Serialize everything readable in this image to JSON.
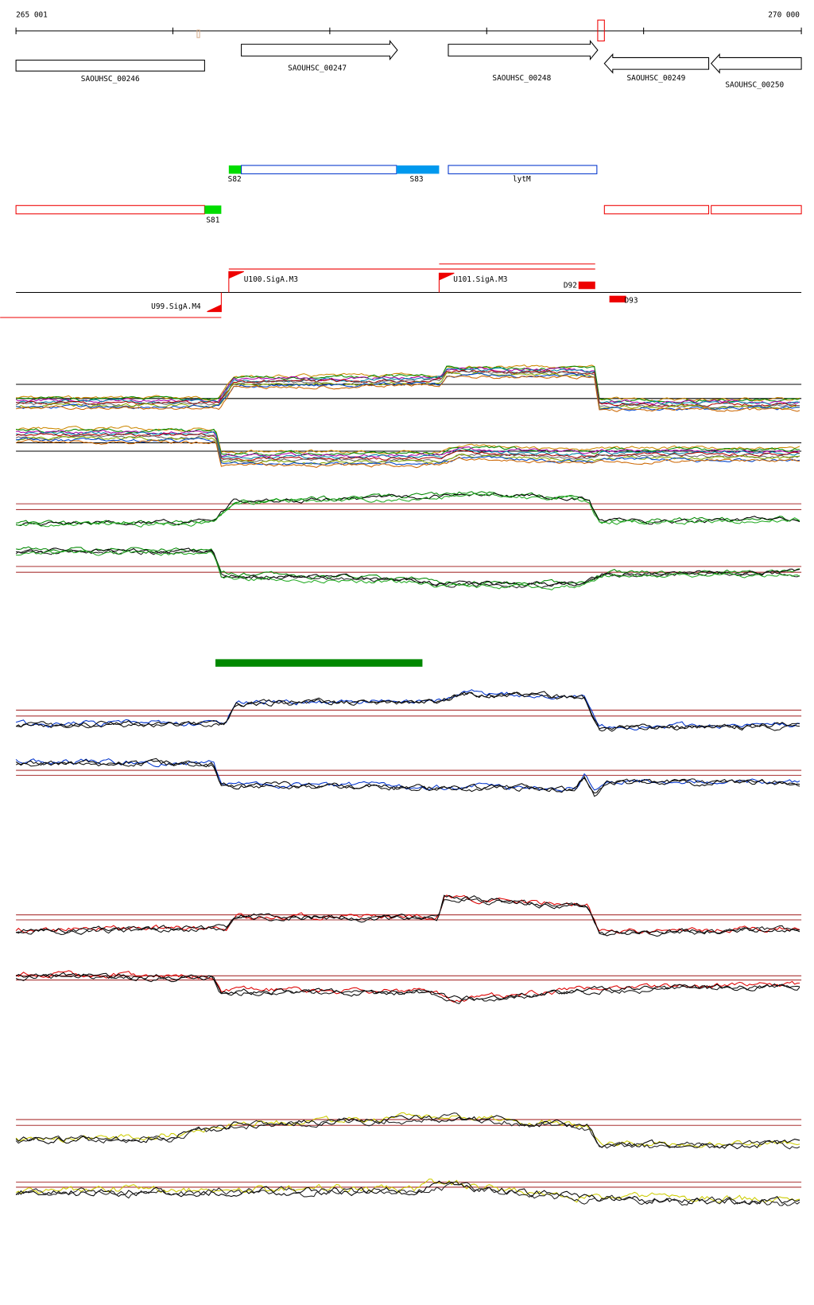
{
  "axis": {
    "start": "265 001",
    "end": "270 000"
  },
  "genes": [
    {
      "label": "SAOUHSC_00246"
    },
    {
      "label": "SAOUHSC_00247"
    },
    {
      "label": "SAOUHSC_00248"
    },
    {
      "label": "SAOUHSC_00249"
    },
    {
      "label": "SAOUHSC_00250"
    }
  ],
  "features": [
    {
      "label": "S82"
    },
    {
      "label": "S83"
    },
    {
      "label": "lytM"
    },
    {
      "label": "S81"
    }
  ],
  "promoters": [
    {
      "label": "U100.SigA.M3"
    },
    {
      "label": "U101.SigA.M3"
    },
    {
      "label": "U99.SigA.M4"
    },
    {
      "label": "D92"
    },
    {
      "label": "D93"
    }
  ]
}
